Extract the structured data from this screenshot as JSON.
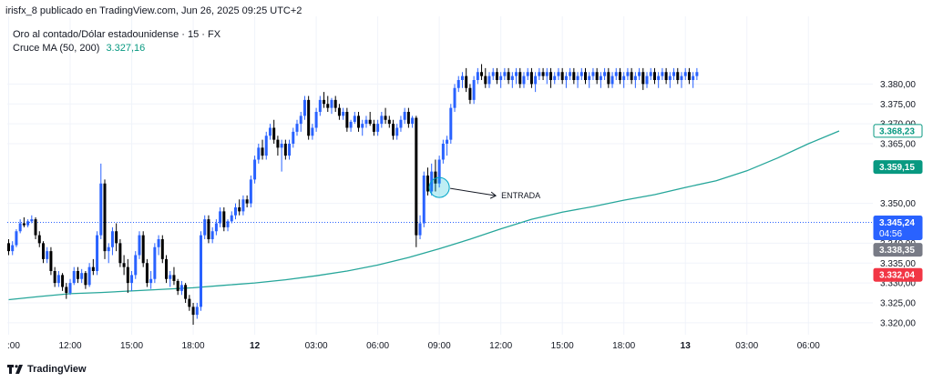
{
  "header": {
    "published_by": "irisfx_8 publicado en TradingView.com, Jun 26, 2025 09:25 UTC+2"
  },
  "legend": {
    "symbol": "Oro al contado/Dólar estadounidense · 15 · FX",
    "indicator": "Cruce MA (50, 200)",
    "indicator_value": "3.327,16"
  },
  "footer": {
    "brand": "TradingView"
  },
  "colors": {
    "up": "#2962ff",
    "down": "#000000",
    "ma": "#26a69a",
    "price_line": "#2962ff",
    "sell": "#f23645",
    "gray": "#787b86",
    "green_tag": "#089981"
  },
  "annotation": {
    "label": "ENTRADA"
  },
  "price_tags": [
    {
      "label": "3.368,23",
      "style": "outline-green",
      "price": 3368.23
    },
    {
      "label": "3.359,15",
      "style": "green",
      "price": 3359.15
    },
    {
      "label": "3.345,24",
      "sub": "04:56",
      "style": "blue",
      "price": 3345.24
    },
    {
      "label": "3.338,35",
      "style": "gray",
      "price": 3338.35
    },
    {
      "label": "3.332,04",
      "style": "red",
      "price": 3332.04
    }
  ],
  "chart_data": {
    "type": "candlestick",
    "y_ticks": [
      "3.380,00",
      "3.375,00",
      "3.370,00",
      "3.365,00",
      "3.350,00",
      "3.340,00",
      "3.335,00",
      "3.330,00",
      "3.325,00",
      "3.320,00"
    ],
    "y_tick_values": [
      3380,
      3375,
      3370,
      3365,
      3350,
      3340,
      3335,
      3330,
      3325,
      3320
    ],
    "ylim": [
      3317,
      3397
    ],
    "x_ticks": [
      ":00",
      "12:00",
      "15:00",
      "18:00",
      "12",
      "03:00",
      "06:00",
      "09:00",
      "12:00",
      "15:00",
      "18:00",
      "13",
      "03:00",
      "06:00"
    ],
    "x_tick_index": [
      0,
      16,
      32,
      48,
      64,
      80,
      96,
      112,
      128,
      144,
      160,
      176,
      192,
      208
    ],
    "x_bold_ticks": [
      "12",
      "13"
    ],
    "current_price": 3345.24,
    "entry_bar": 112,
    "candles": [
      [
        3340.0,
        3341.0,
        3337.0,
        3338.0
      ],
      [
        3338.0,
        3340.5,
        3337.0,
        3339.5
      ],
      [
        3339.5,
        3343.5,
        3339.0,
        3343.0
      ],
      [
        3343.0,
        3346.0,
        3342.5,
        3345.0
      ],
      [
        3345.0,
        3346.5,
        3344.0,
        3344.5
      ],
      [
        3344.5,
        3346.0,
        3344.0,
        3345.5
      ],
      [
        3345.5,
        3347.0,
        3345.0,
        3346.0
      ],
      [
        3346.0,
        3346.5,
        3341.0,
        3342.0
      ],
      [
        3342.0,
        3343.0,
        3339.0,
        3340.0
      ],
      [
        3340.0,
        3340.5,
        3335.0,
        3336.0
      ],
      [
        3336.0,
        3339.0,
        3335.0,
        3338.0
      ],
      [
        3338.0,
        3339.0,
        3332.0,
        3333.0
      ],
      [
        3333.0,
        3334.0,
        3329.0,
        3330.0
      ],
      [
        3330.0,
        3333.0,
        3329.0,
        3332.0
      ],
      [
        3332.0,
        3332.5,
        3328.0,
        3329.0
      ],
      [
        3329.0,
        3330.0,
        3326.0,
        3327.5
      ],
      [
        3327.5,
        3331.0,
        3327.0,
        3330.0
      ],
      [
        3330.0,
        3334.0,
        3329.5,
        3333.0
      ],
      [
        3333.0,
        3334.0,
        3330.0,
        3331.0
      ],
      [
        3331.0,
        3333.5,
        3330.0,
        3332.5
      ],
      [
        3332.5,
        3333.0,
        3328.5,
        3329.5
      ],
      [
        3329.5,
        3335.0,
        3329.0,
        3334.0
      ],
      [
        3334.0,
        3336.0,
        3332.0,
        3333.0
      ],
      [
        3333.0,
        3343.0,
        3332.0,
        3342.0
      ],
      [
        3342.0,
        3360.0,
        3341.0,
        3355.0
      ],
      [
        3355.0,
        3356.0,
        3336.0,
        3338.0
      ],
      [
        3338.0,
        3340.0,
        3335.0,
        3339.0
      ],
      [
        3339.0,
        3344.0,
        3337.0,
        3343.0
      ],
      [
        3343.0,
        3345.0,
        3338.0,
        3340.0
      ],
      [
        3340.0,
        3341.0,
        3334.0,
        3335.0
      ],
      [
        3335.0,
        3337.0,
        3332.0,
        3334.0
      ],
      [
        3334.0,
        3336.0,
        3327.5,
        3330.0
      ],
      [
        3330.0,
        3333.0,
        3328.0,
        3332.0
      ],
      [
        3332.0,
        3338.0,
        3331.0,
        3337.0
      ],
      [
        3337.0,
        3343.0,
        3336.0,
        3342.0
      ],
      [
        3342.0,
        3343.0,
        3334.0,
        3335.0
      ],
      [
        3335.0,
        3336.0,
        3329.0,
        3330.0
      ],
      [
        3330.0,
        3333.0,
        3328.5,
        3331.0
      ],
      [
        3331.0,
        3340.0,
        3330.0,
        3339.0
      ],
      [
        3339.0,
        3342.0,
        3337.0,
        3341.0
      ],
      [
        3341.0,
        3342.0,
        3335.0,
        3336.0
      ],
      [
        3336.0,
        3337.0,
        3330.0,
        3331.0
      ],
      [
        3331.0,
        3333.0,
        3329.0,
        3332.0
      ],
      [
        3332.0,
        3334.0,
        3329.5,
        3330.5
      ],
      [
        3330.5,
        3331.0,
        3327.0,
        3328.0
      ],
      [
        3328.0,
        3330.5,
        3327.0,
        3329.5
      ],
      [
        3329.5,
        3330.0,
        3325.0,
        3326.0
      ],
      [
        3326.0,
        3327.0,
        3323.0,
        3324.0
      ],
      [
        3324.0,
        3325.0,
        3319.5,
        3322.0
      ],
      [
        3322.0,
        3325.0,
        3321.0,
        3324.0
      ],
      [
        3324.0,
        3343.0,
        3323.0,
        3342.0
      ],
      [
        3342.0,
        3347.0,
        3341.0,
        3346.0
      ],
      [
        3346.0,
        3347.0,
        3340.0,
        3341.0
      ],
      [
        3341.0,
        3344.0,
        3340.0,
        3343.0
      ],
      [
        3343.0,
        3346.0,
        3342.0,
        3345.0
      ],
      [
        3345.0,
        3349.0,
        3344.0,
        3348.0
      ],
      [
        3348.0,
        3349.0,
        3343.0,
        3344.0
      ],
      [
        3344.0,
        3346.0,
        3343.0,
        3345.5
      ],
      [
        3345.5,
        3348.0,
        3345.0,
        3347.0
      ],
      [
        3347.0,
        3350.0,
        3346.0,
        3349.0
      ],
      [
        3349.0,
        3351.0,
        3347.0,
        3348.0
      ],
      [
        3348.0,
        3352.0,
        3347.0,
        3351.0
      ],
      [
        3351.0,
        3352.0,
        3349.0,
        3350.0
      ],
      [
        3350.0,
        3357.0,
        3349.0,
        3356.0
      ],
      [
        3356.0,
        3362.0,
        3355.0,
        3361.0
      ],
      [
        3361.0,
        3365.0,
        3360.0,
        3364.0
      ],
      [
        3364.0,
        3366.0,
        3361.0,
        3362.0
      ],
      [
        3362.0,
        3368.0,
        3361.0,
        3367.0
      ],
      [
        3367.0,
        3370.0,
        3366.0,
        3369.0
      ],
      [
        3369.0,
        3371.0,
        3365.0,
        3366.0
      ],
      [
        3366.0,
        3367.0,
        3362.0,
        3364.0
      ],
      [
        3364.0,
        3366.0,
        3358.0,
        3365.0
      ],
      [
        3365.0,
        3366.0,
        3361.0,
        3362.0
      ],
      [
        3362.0,
        3366.0,
        3361.0,
        3365.0
      ],
      [
        3365.0,
        3369.0,
        3364.0,
        3368.0
      ],
      [
        3368.0,
        3371.0,
        3367.0,
        3370.0
      ],
      [
        3370.0,
        3373.0,
        3368.0,
        3372.0
      ],
      [
        3372.0,
        3377.0,
        3371.0,
        3376.0
      ],
      [
        3376.0,
        3377.0,
        3366.0,
        3367.0
      ],
      [
        3367.0,
        3370.0,
        3366.0,
        3369.0
      ],
      [
        3369.0,
        3374.0,
        3368.0,
        3373.0
      ],
      [
        3373.0,
        3377.0,
        3372.0,
        3376.0
      ],
      [
        3376.0,
        3378.0,
        3374.0,
        3375.0
      ],
      [
        3375.0,
        3377.0,
        3373.0,
        3374.0
      ],
      [
        3374.0,
        3376.5,
        3372.5,
        3376.0
      ],
      [
        3376.0,
        3377.0,
        3373.0,
        3374.0
      ],
      [
        3374.0,
        3375.0,
        3371.0,
        3372.0
      ],
      [
        3372.0,
        3374.0,
        3371.0,
        3373.0
      ],
      [
        3373.0,
        3374.0,
        3368.0,
        3369.0
      ],
      [
        3369.0,
        3371.0,
        3368.0,
        3370.5
      ],
      [
        3370.5,
        3373.0,
        3370.0,
        3372.0
      ],
      [
        3372.0,
        3373.0,
        3368.0,
        3369.0
      ],
      [
        3369.0,
        3371.0,
        3367.0,
        3370.0
      ],
      [
        3370.0,
        3372.0,
        3369.0,
        3371.0
      ],
      [
        3371.0,
        3373.0,
        3369.5,
        3370.0
      ],
      [
        3370.0,
        3371.0,
        3367.0,
        3368.0
      ],
      [
        3368.0,
        3371.0,
        3367.0,
        3370.0
      ],
      [
        3370.0,
        3373.0,
        3369.0,
        3372.0
      ],
      [
        3372.0,
        3374.0,
        3370.0,
        3371.0
      ],
      [
        3371.0,
        3372.0,
        3369.0,
        3370.0
      ],
      [
        3370.0,
        3371.0,
        3366.0,
        3367.0
      ],
      [
        3367.0,
        3370.0,
        3366.0,
        3369.0
      ],
      [
        3369.0,
        3372.0,
        3368.0,
        3371.0
      ],
      [
        3371.0,
        3374.0,
        3370.0,
        3373.0
      ],
      [
        3373.0,
        3374.0,
        3369.0,
        3370.0
      ],
      [
        3370.0,
        3372.0,
        3369.0,
        3371.5
      ],
      [
        3371.5,
        3372.0,
        3339.0,
        3342.0
      ],
      [
        3342.0,
        3347.0,
        3341.0,
        3345.0
      ],
      [
        3345.0,
        3358.0,
        3344.0,
        3357.0
      ],
      [
        3357.0,
        3359.0,
        3352.0,
        3353.0
      ],
      [
        3353.0,
        3360.0,
        3352.0,
        3358.0
      ],
      [
        3358.0,
        3361.0,
        3353.0,
        3355.0
      ],
      [
        3355.0,
        3362.0,
        3354.0,
        3361.0
      ],
      [
        3361.0,
        3366.0,
        3360.0,
        3365.0
      ],
      [
        3365.0,
        3367.0,
        3362.0,
        3366.0
      ],
      [
        3366.0,
        3375.0,
        3365.0,
        3374.0
      ],
      [
        3374.0,
        3380.0,
        3373.0,
        3379.0
      ],
      [
        3379.0,
        3382.0,
        3378.0,
        3381.0
      ],
      [
        3381.0,
        3383.0,
        3379.0,
        3382.0
      ],
      [
        3382.0,
        3384.0,
        3378.0,
        3379.0
      ],
      [
        3379.0,
        3380.0,
        3375.0,
        3376.0
      ],
      [
        3376.0,
        3382.0,
        3375.0,
        3381.0
      ],
      [
        3381.0,
        3384.0,
        3380.0,
        3383.0
      ],
      [
        3383.0,
        3385.0,
        3381.0,
        3382.0
      ],
      [
        3382.0,
        3384.0,
        3379.0,
        3380.0
      ],
      [
        3380.0,
        3383.0,
        3379.0,
        3382.0
      ],
      [
        3382.0,
        3384.0,
        3381.0,
        3383.0
      ],
      [
        3383.0,
        3384.0,
        3380.0,
        3381.0
      ],
      [
        3381.0,
        3383.0,
        3379.0,
        3382.0
      ],
      [
        3382.0,
        3384.0,
        3381.0,
        3383.0
      ],
      [
        3383.0,
        3384.0,
        3380.0,
        3381.0
      ],
      [
        3381.0,
        3383.0,
        3379.0,
        3382.0
      ],
      [
        3382.0,
        3384.0,
        3380.0,
        3383.0
      ],
      [
        3383.0,
        3384.0,
        3379.0,
        3380.0
      ],
      [
        3380.0,
        3383.0,
        3379.0,
        3382.0
      ],
      [
        3382.0,
        3384.0,
        3381.0,
        3383.0
      ],
      [
        3383.0,
        3384.0,
        3379.0,
        3380.0
      ],
      [
        3380.0,
        3383.0,
        3378.0,
        3382.0
      ],
      [
        3382.0,
        3384.0,
        3381.0,
        3383.0
      ],
      [
        3383.0,
        3384.0,
        3381.0,
        3382.0
      ],
      [
        3382.0,
        3384.0,
        3380.0,
        3383.0
      ],
      [
        3383.0,
        3384.0,
        3379.0,
        3381.0
      ],
      [
        3381.0,
        3383.0,
        3380.0,
        3382.0
      ],
      [
        3382.0,
        3384.0,
        3381.0,
        3383.0
      ],
      [
        3383.0,
        3384.0,
        3380.0,
        3381.0
      ],
      [
        3381.0,
        3383.0,
        3379.0,
        3382.0
      ],
      [
        3382.0,
        3384.0,
        3381.0,
        3383.0
      ],
      [
        3383.0,
        3384.0,
        3380.0,
        3381.0
      ],
      [
        3381.0,
        3383.0,
        3379.0,
        3382.0
      ],
      [
        3382.0,
        3384.0,
        3381.0,
        3383.0
      ],
      [
        3383.0,
        3384.0,
        3380.0,
        3381.0
      ],
      [
        3381.0,
        3383.0,
        3379.0,
        3382.0
      ],
      [
        3382.0,
        3384.0,
        3381.0,
        3383.0
      ],
      [
        3383.0,
        3384.0,
        3380.0,
        3381.0
      ],
      [
        3381.0,
        3383.0,
        3379.0,
        3382.0
      ],
      [
        3382.0,
        3384.0,
        3381.0,
        3383.0
      ],
      [
        3383.0,
        3384.0,
        3379.0,
        3380.0
      ],
      [
        3380.0,
        3383.0,
        3379.0,
        3382.0
      ],
      [
        3382.0,
        3384.0,
        3381.0,
        3383.0
      ],
      [
        3383.0,
        3384.0,
        3380.0,
        3381.0
      ],
      [
        3381.0,
        3383.0,
        3379.0,
        3382.0
      ],
      [
        3382.0,
        3384.0,
        3381.0,
        3383.0
      ],
      [
        3383.0,
        3384.0,
        3380.0,
        3381.0
      ],
      [
        3381.0,
        3383.0,
        3379.0,
        3382.0
      ],
      [
        3382.0,
        3384.0,
        3381.0,
        3383.0
      ],
      [
        3383.0,
        3384.0,
        3378.5,
        3380.0
      ],
      [
        3380.0,
        3383.0,
        3379.0,
        3382.0
      ],
      [
        3382.0,
        3384.0,
        3381.0,
        3383.0
      ],
      [
        3383.0,
        3384.0,
        3380.0,
        3381.0
      ],
      [
        3381.0,
        3383.0,
        3379.0,
        3382.0
      ],
      [
        3382.0,
        3384.0,
        3381.0,
        3383.0
      ],
      [
        3383.0,
        3384.0,
        3380.0,
        3381.0
      ],
      [
        3381.0,
        3383.0,
        3379.0,
        3382.0
      ],
      [
        3382.0,
        3384.0,
        3381.0,
        3383.0
      ],
      [
        3383.0,
        3384.0,
        3380.0,
        3381.0
      ],
      [
        3381.0,
        3383.0,
        3379.0,
        3382.0
      ],
      [
        3382.0,
        3384.0,
        3381.0,
        3383.0
      ],
      [
        3383.0,
        3384.0,
        3380.0,
        3381.0
      ],
      [
        3381.0,
        3383.0,
        3379.0,
        3382.0
      ],
      [
        3382.0,
        3384.0,
        3381.0,
        3383.0
      ]
    ],
    "ma_points": [
      [
        0,
        3325.8
      ],
      [
        8,
        3326.6
      ],
      [
        16,
        3327.3
      ],
      [
        24,
        3327.6
      ],
      [
        32,
        3328.0
      ],
      [
        40,
        3328.4
      ],
      [
        48,
        3328.8
      ],
      [
        56,
        3329.4
      ],
      [
        64,
        3330.0
      ],
      [
        72,
        3330.8
      ],
      [
        80,
        3331.8
      ],
      [
        88,
        3333.0
      ],
      [
        96,
        3334.5
      ],
      [
        104,
        3336.4
      ],
      [
        112,
        3338.6
      ],
      [
        120,
        3341.0
      ],
      [
        128,
        3343.6
      ],
      [
        136,
        3346.0
      ],
      [
        144,
        3347.8
      ],
      [
        152,
        3349.2
      ],
      [
        160,
        3350.8
      ],
      [
        168,
        3352.2
      ],
      [
        176,
        3354.0
      ],
      [
        184,
        3355.7
      ],
      [
        192,
        3358.2
      ],
      [
        200,
        3361.4
      ],
      [
        208,
        3365.0
      ],
      [
        216,
        3368.2
      ]
    ]
  }
}
